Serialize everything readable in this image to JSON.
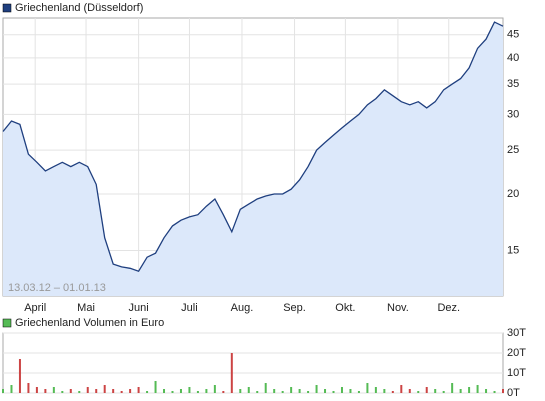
{
  "chart_data": [
    {
      "type": "line",
      "legend": "Griechenland (Düsseldorf)",
      "annotation": "13.03.12 – 01.01.13",
      "log_scale": true,
      "grid": true,
      "color": "#1f3f7f",
      "fill": "#dce8fa",
      "values": [
        27.5,
        29,
        28.5,
        24.5,
        23.5,
        22.5,
        23,
        23.5,
        23,
        23.5,
        23,
        21,
        16,
        14,
        13.8,
        13.7,
        13.5,
        14.5,
        14.8,
        16,
        17,
        17.5,
        17.8,
        18,
        18.8,
        19.5,
        18,
        16.5,
        18.5,
        19,
        19.5,
        19.8,
        20,
        20,
        20.5,
        21.5,
        23,
        25,
        26,
        27,
        28,
        29,
        30,
        31.5,
        32.5,
        34,
        33,
        32,
        31.5,
        32,
        31,
        32,
        34,
        35,
        36,
        38,
        42,
        44,
        48,
        47
      ],
      "xlim": [
        0,
        59
      ],
      "xticks": [
        {
          "value": 3.8,
          "label": "April"
        },
        {
          "value": 9.8,
          "label": "Mai"
        },
        {
          "value": 16,
          "label": "Juni"
        },
        {
          "value": 22,
          "label": "Juli"
        },
        {
          "value": 28.2,
          "label": "Aug."
        },
        {
          "value": 34.4,
          "label": "Sep."
        },
        {
          "value": 40.4,
          "label": "Okt."
        },
        {
          "value": 46.6,
          "label": "Nov."
        },
        {
          "value": 52.6,
          "label": "Dez."
        }
      ],
      "ylim": [
        11.9,
        49
      ],
      "yticks": [
        15,
        20,
        25,
        30,
        35,
        40,
        45
      ]
    },
    {
      "type": "bar",
      "legend": "Griechenland Volumen in Euro",
      "legend_color": "#55bb55",
      "up_color": "#55bb55",
      "down_color": "#cc4444",
      "values": [
        2,
        4,
        17,
        5,
        3,
        2,
        3,
        1,
        2,
        1,
        3,
        2,
        4,
        2,
        1,
        2,
        3,
        1,
        6,
        2,
        1,
        2,
        3,
        1,
        2,
        4,
        1,
        20,
        2,
        3,
        1,
        5,
        2,
        1,
        3,
        2,
        1,
        4,
        2,
        1,
        3,
        2,
        1,
        5,
        3,
        2,
        1,
        4,
        2,
        1,
        3,
        2,
        1,
        5,
        2,
        3,
        4,
        2,
        1,
        2
      ],
      "xlim": [
        0,
        59
      ],
      "ylim": [
        0,
        30
      ],
      "yticks": [
        {
          "value": 0,
          "label": "0T"
        },
        {
          "value": 10,
          "label": "10T"
        },
        {
          "value": 20,
          "label": "20T"
        },
        {
          "value": 30,
          "label": "30T"
        }
      ]
    }
  ]
}
